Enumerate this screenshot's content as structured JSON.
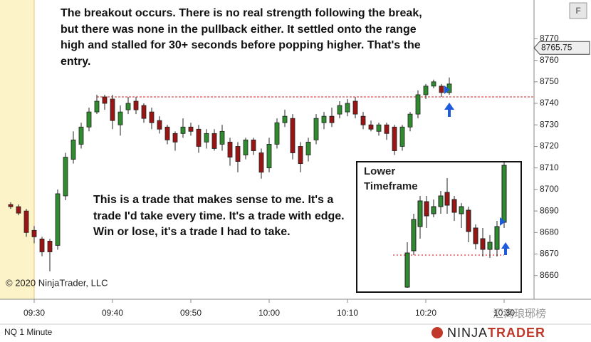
{
  "chart_data": {
    "type": "candlestick",
    "annotations": [
      "The breakout occurs. There is no real strength following the break, but there was none in the pullback either. It settled onto the range high and stalled for 30+ seconds before popping higher. That's the entry.",
      "This is a trade that makes sense to me. It's a trade I'd take every time. It's a trade with edge. Win or lose, it's a trade I had to take."
    ],
    "inset_title": "Lower Timeframe",
    "copyright": "© 2020 NinjaTrader, LLC",
    "instrument": "NQ 1 Minute",
    "brand": [
      "NINJA",
      "TRADER"
    ],
    "watermark": "汇商琅琊榜",
    "button": "F",
    "x": [
      "09:27",
      "09:28",
      "09:29",
      "09:30",
      "09:31",
      "09:32",
      "09:33",
      "09:34",
      "09:35",
      "09:36",
      "09:37",
      "09:38",
      "09:39",
      "09:40",
      "09:41",
      "09:42",
      "09:43",
      "09:44",
      "09:45",
      "09:46",
      "09:47",
      "09:48",
      "09:49",
      "09:50",
      "09:51",
      "09:52",
      "09:53",
      "09:54",
      "09:55",
      "09:56",
      "09:57",
      "09:58",
      "09:59",
      "10:00",
      "10:01",
      "10:02",
      "10:03",
      "10:04",
      "10:05",
      "10:06",
      "10:07",
      "10:08",
      "10:09",
      "10:10",
      "10:11",
      "10:12",
      "10:13",
      "10:14",
      "10:15",
      "10:16",
      "10:17",
      "10:18",
      "10:19",
      "10:20",
      "10:21",
      "10:22",
      "10:23"
    ],
    "open": [
      8693,
      8692,
      8690,
      8681,
      8677,
      8676,
      8674,
      8697,
      8714,
      8721,
      8729,
      8736,
      8743,
      8742,
      8730,
      8737,
      8741,
      8739,
      8736,
      8732,
      8729,
      8726,
      8726,
      8729,
      8728,
      8722,
      8726,
      8721,
      8722,
      8720,
      8716,
      8723,
      8717,
      8710,
      8721,
      8731,
      8733,
      8720,
      8716,
      8723,
      8731,
      8734,
      8735,
      8736,
      8741,
      8734,
      8730,
      8727,
      8730,
      8729,
      8720,
      8729,
      8735,
      8744,
      8748,
      8748,
      8745
    ],
    "high": [
      8694,
      8693,
      8691,
      8683,
      8678,
      8677,
      8700,
      8717,
      8727,
      8731,
      8738,
      8744,
      8744,
      8744,
      8739,
      8743,
      8743,
      8740,
      8738,
      8734,
      8730,
      8727,
      8733,
      8731,
      8730,
      8728,
      8728,
      8730,
      8724,
      8722,
      8724,
      8724,
      8719,
      8724,
      8733,
      8737,
      8735,
      8722,
      8724,
      8735,
      8736,
      8738,
      8741,
      8742,
      8743,
      8736,
      8732,
      8731,
      8731,
      8730,
      8730,
      8736,
      8746,
      8749,
      8751,
      8749,
      8752
    ],
    "low": [
      8691,
      8688,
      8678,
      8675,
      8669,
      8662,
      8672,
      8695,
      8712,
      8719,
      8727,
      8735,
      8737,
      8728,
      8725,
      8735,
      8735,
      8731,
      8728,
      8726,
      8721,
      8718,
      8724,
      8725,
      8717,
      8719,
      8718,
      8718,
      8711,
      8708,
      8714,
      8716,
      8705,
      8708,
      8719,
      8729,
      8714,
      8708,
      8713,
      8721,
      8728,
      8729,
      8733,
      8734,
      8733,
      8728,
      8727,
      8725,
      8723,
      8716,
      8718,
      8727,
      8733,
      8742,
      8747,
      8743,
      8744
    ],
    "close": [
      8692,
      8689,
      8680,
      8678,
      8671,
      8671,
      8698,
      8715,
      8723,
      8729,
      8736,
      8741,
      8740,
      8732,
      8736,
      8740,
      8737,
      8733,
      8731,
      8728,
      8723,
      8722,
      8729,
      8727,
      8720,
      8726,
      8719,
      8727,
      8715,
      8713,
      8723,
      8718,
      8708,
      8721,
      8731,
      8734,
      8717,
      8712,
      8722,
      8733,
      8734,
      8731,
      8739,
      8740,
      8735,
      8730,
      8728,
      8730,
      8726,
      8718,
      8729,
      8735,
      8744,
      8748,
      8750,
      8745,
      8749
    ],
    "up_color": "#2e8b2e",
    "down_color": "#9b1414",
    "ylim": [
      8649,
      8788
    ],
    "yticks": [
      8660,
      8670,
      8680,
      8690,
      8700,
      8710,
      8720,
      8730,
      8740,
      8750,
      8760,
      8770
    ],
    "xticks": [
      "09:30",
      "09:40",
      "09:50",
      "10:00",
      "10:10",
      "10:20",
      "10:30"
    ],
    "last_price": 8765.75,
    "breakout_level": 8743,
    "level_color": "#d42020"
  }
}
